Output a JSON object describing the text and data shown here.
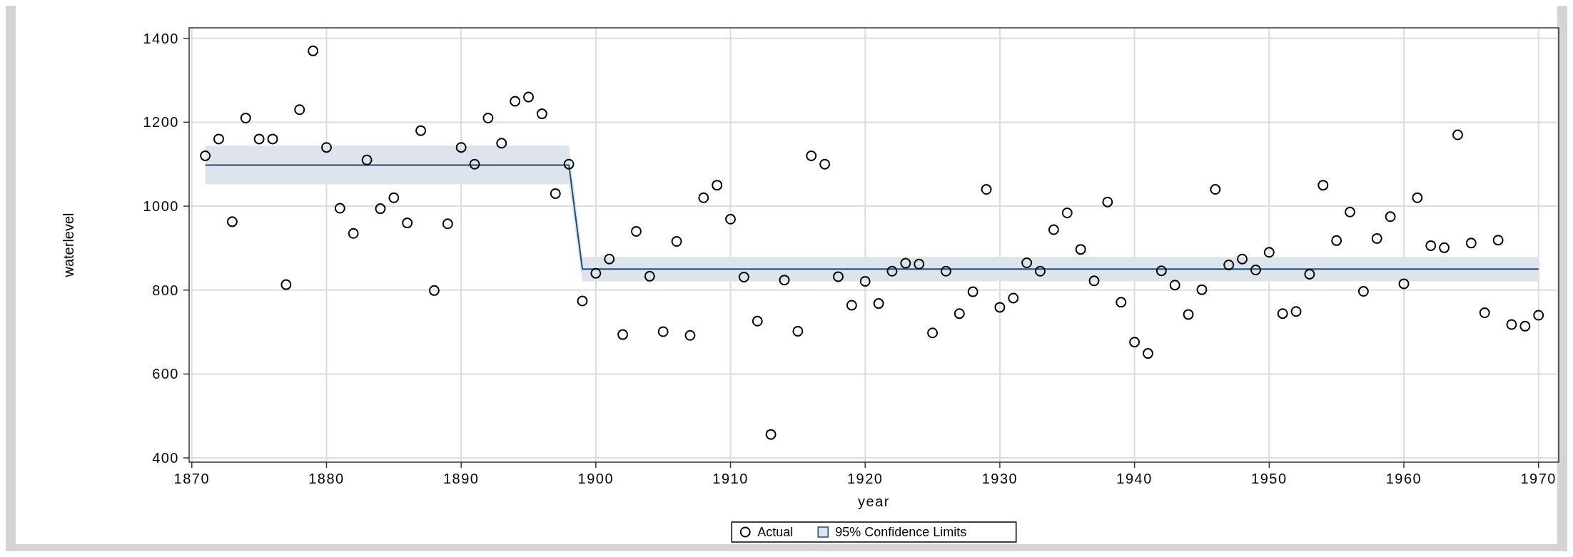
{
  "chart_data": {
    "type": "scatter",
    "xlabel": "year",
    "ylabel": "waterlevel",
    "xlim": [
      1869.8,
      1971.5
    ],
    "ylim": [
      390,
      1425
    ],
    "xticks": [
      1870,
      1880,
      1890,
      1900,
      1910,
      1920,
      1930,
      1940,
      1950,
      1960,
      1970
    ],
    "yticks": [
      400,
      600,
      800,
      1000,
      1200,
      1400
    ],
    "grid": true,
    "legend": "bottom",
    "marker": "circle",
    "series": [
      {
        "name": "Actual",
        "color": "#000000",
        "x": [
          1871,
          1872,
          1873,
          1874,
          1875,
          1876,
          1877,
          1878,
          1879,
          1880,
          1881,
          1882,
          1883,
          1884,
          1885,
          1886,
          1887,
          1888,
          1889,
          1890,
          1891,
          1892,
          1893,
          1894,
          1895,
          1896,
          1897,
          1898,
          1899,
          1900,
          1901,
          1902,
          1903,
          1904,
          1905,
          1906,
          1907,
          1908,
          1909,
          1910,
          1911,
          1912,
          1913,
          1914,
          1915,
          1916,
          1917,
          1918,
          1919,
          1920,
          1921,
          1922,
          1923,
          1924,
          1925,
          1926,
          1927,
          1928,
          1929,
          1930,
          1931,
          1932,
          1933,
          1934,
          1935,
          1936,
          1937,
          1938,
          1939,
          1940,
          1941,
          1942,
          1943,
          1944,
          1945,
          1946,
          1947,
          1948,
          1949,
          1950,
          1951,
          1952,
          1953,
          1954,
          1955,
          1956,
          1957,
          1958,
          1959,
          1960,
          1961,
          1962,
          1963,
          1964,
          1965,
          1966,
          1967,
          1968,
          1969,
          1970
        ],
        "values": [
          1120,
          1160,
          963,
          1210,
          1160,
          1160,
          813,
          1230,
          1370,
          1140,
          995,
          935,
          1110,
          994,
          1020,
          960,
          1180,
          799,
          958,
          1140,
          1100,
          1210,
          1150,
          1250,
          1260,
          1220,
          1030,
          1100,
          774,
          840,
          874,
          694,
          940,
          833,
          701,
          916,
          692,
          1020,
          1050,
          969,
          831,
          726,
          456,
          824,
          702,
          1120,
          1100,
          832,
          764,
          821,
          768,
          845,
          864,
          862,
          698,
          845,
          744,
          796,
          1040,
          759,
          781,
          865,
          845,
          944,
          984,
          897,
          822,
          1010,
          771,
          676,
          649,
          846,
          812,
          742,
          801,
          1040,
          860,
          874,
          848,
          890,
          744,
          749,
          838,
          1050,
          918,
          986,
          797,
          923,
          975,
          815,
          1020,
          906,
          901,
          1170,
          912,
          746,
          919,
          718,
          714,
          740
        ]
      },
      {
        "name": "95% Confidence Limits",
        "type": "line",
        "marker": "none",
        "color": "#1f4e79",
        "x": [
          1871,
          1898,
          1899,
          1970
        ],
        "values": [
          1098,
          1098,
          850,
          850
        ],
        "lower": [
          1052,
          1052,
          821,
          821
        ],
        "upper": [
          1144,
          1144,
          879,
          879
        ]
      }
    ]
  }
}
